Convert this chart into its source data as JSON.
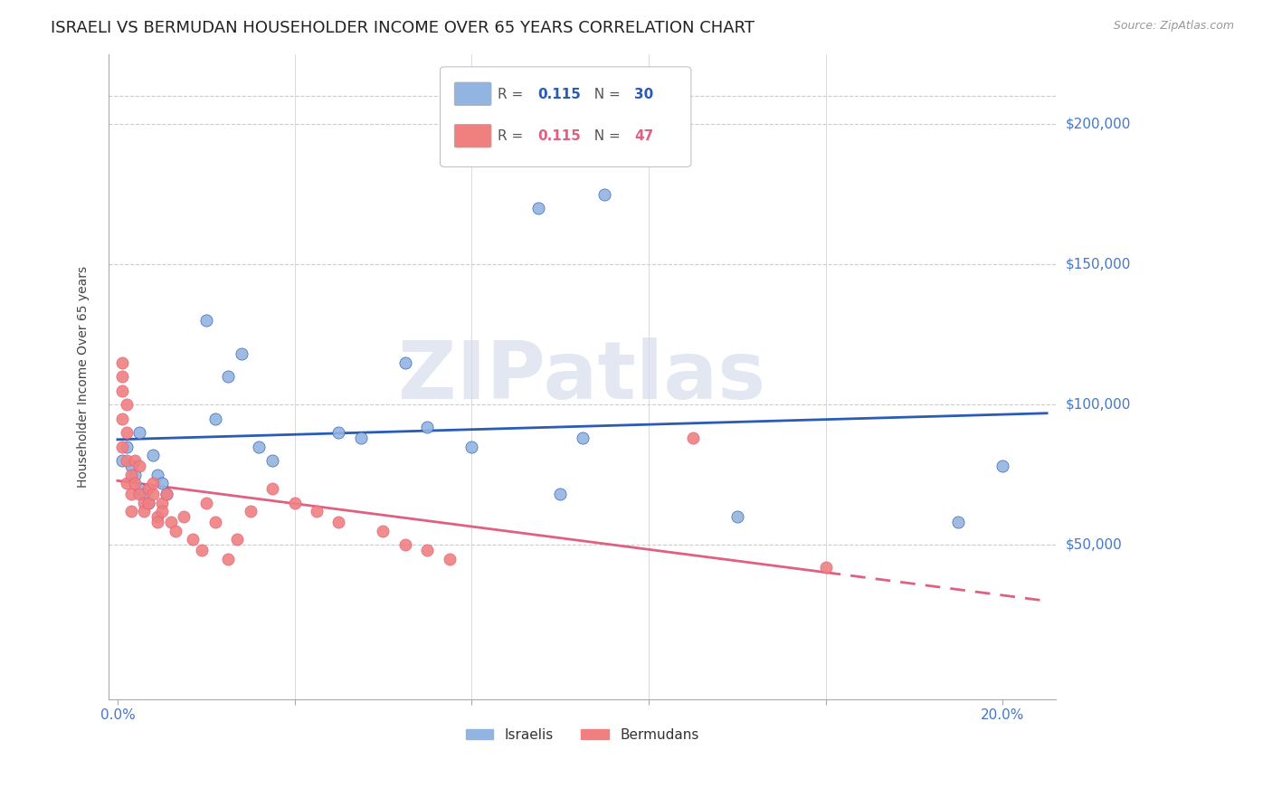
{
  "title": "ISRAELI VS BERMUDAN HOUSEHOLDER INCOME OVER 65 YEARS CORRELATION CHART",
  "source": "Source: ZipAtlas.com",
  "ylabel": "Householder Income Over 65 years",
  "watermark": "ZIPatlas",
  "israeli_R": "0.115",
  "israeli_N": "30",
  "bermudan_R": "0.115",
  "bermudan_N": "47",
  "israeli_color": "#92B4E0",
  "bermudan_color": "#F08080",
  "line_israeli_color": "#2B5BB5",
  "line_bermudan_color": "#E06080",
  "ytick_labels": [
    "$50,000",
    "$100,000",
    "$150,000",
    "$200,000"
  ],
  "ytick_values": [
    50000,
    100000,
    150000,
    200000
  ],
  "ylim": [
    -5000,
    225000
  ],
  "xlim": [
    -0.002,
    0.212
  ],
  "background_color": "#FFFFFF",
  "grid_color": "#CCCCCC",
  "title_fontsize": 13,
  "tick_fontsize": 11,
  "ytick_color": "#4477CC",
  "xtick_color": "#4477CC",
  "israeli_x": [
    0.001,
    0.002,
    0.003,
    0.004,
    0.005,
    0.005,
    0.006,
    0.007,
    0.008,
    0.009,
    0.01,
    0.011,
    0.02,
    0.022,
    0.025,
    0.028,
    0.032,
    0.035,
    0.05,
    0.055,
    0.065,
    0.07,
    0.08,
    0.095,
    0.1,
    0.105,
    0.11,
    0.14,
    0.19,
    0.2
  ],
  "israeli_y": [
    80000,
    85000,
    78000,
    75000,
    70000,
    90000,
    68000,
    65000,
    82000,
    75000,
    72000,
    68000,
    130000,
    95000,
    110000,
    118000,
    85000,
    80000,
    90000,
    88000,
    115000,
    92000,
    85000,
    170000,
    68000,
    88000,
    175000,
    60000,
    58000,
    78000
  ],
  "bermudan_x": [
    0.001,
    0.001,
    0.001,
    0.001,
    0.001,
    0.002,
    0.002,
    0.002,
    0.002,
    0.003,
    0.003,
    0.003,
    0.004,
    0.004,
    0.005,
    0.005,
    0.006,
    0.006,
    0.007,
    0.007,
    0.008,
    0.008,
    0.009,
    0.009,
    0.01,
    0.01,
    0.011,
    0.012,
    0.013,
    0.015,
    0.017,
    0.019,
    0.02,
    0.022,
    0.025,
    0.027,
    0.03,
    0.035,
    0.04,
    0.045,
    0.05,
    0.06,
    0.065,
    0.07,
    0.075,
    0.13,
    0.16
  ],
  "bermudan_y": [
    110000,
    115000,
    105000,
    95000,
    85000,
    100000,
    90000,
    80000,
    72000,
    75000,
    68000,
    62000,
    80000,
    72000,
    78000,
    68000,
    65000,
    62000,
    70000,
    65000,
    68000,
    72000,
    60000,
    58000,
    65000,
    62000,
    68000,
    58000,
    55000,
    60000,
    52000,
    48000,
    65000,
    58000,
    45000,
    52000,
    62000,
    70000,
    65000,
    62000,
    58000,
    55000,
    50000,
    48000,
    45000,
    88000,
    42000
  ]
}
